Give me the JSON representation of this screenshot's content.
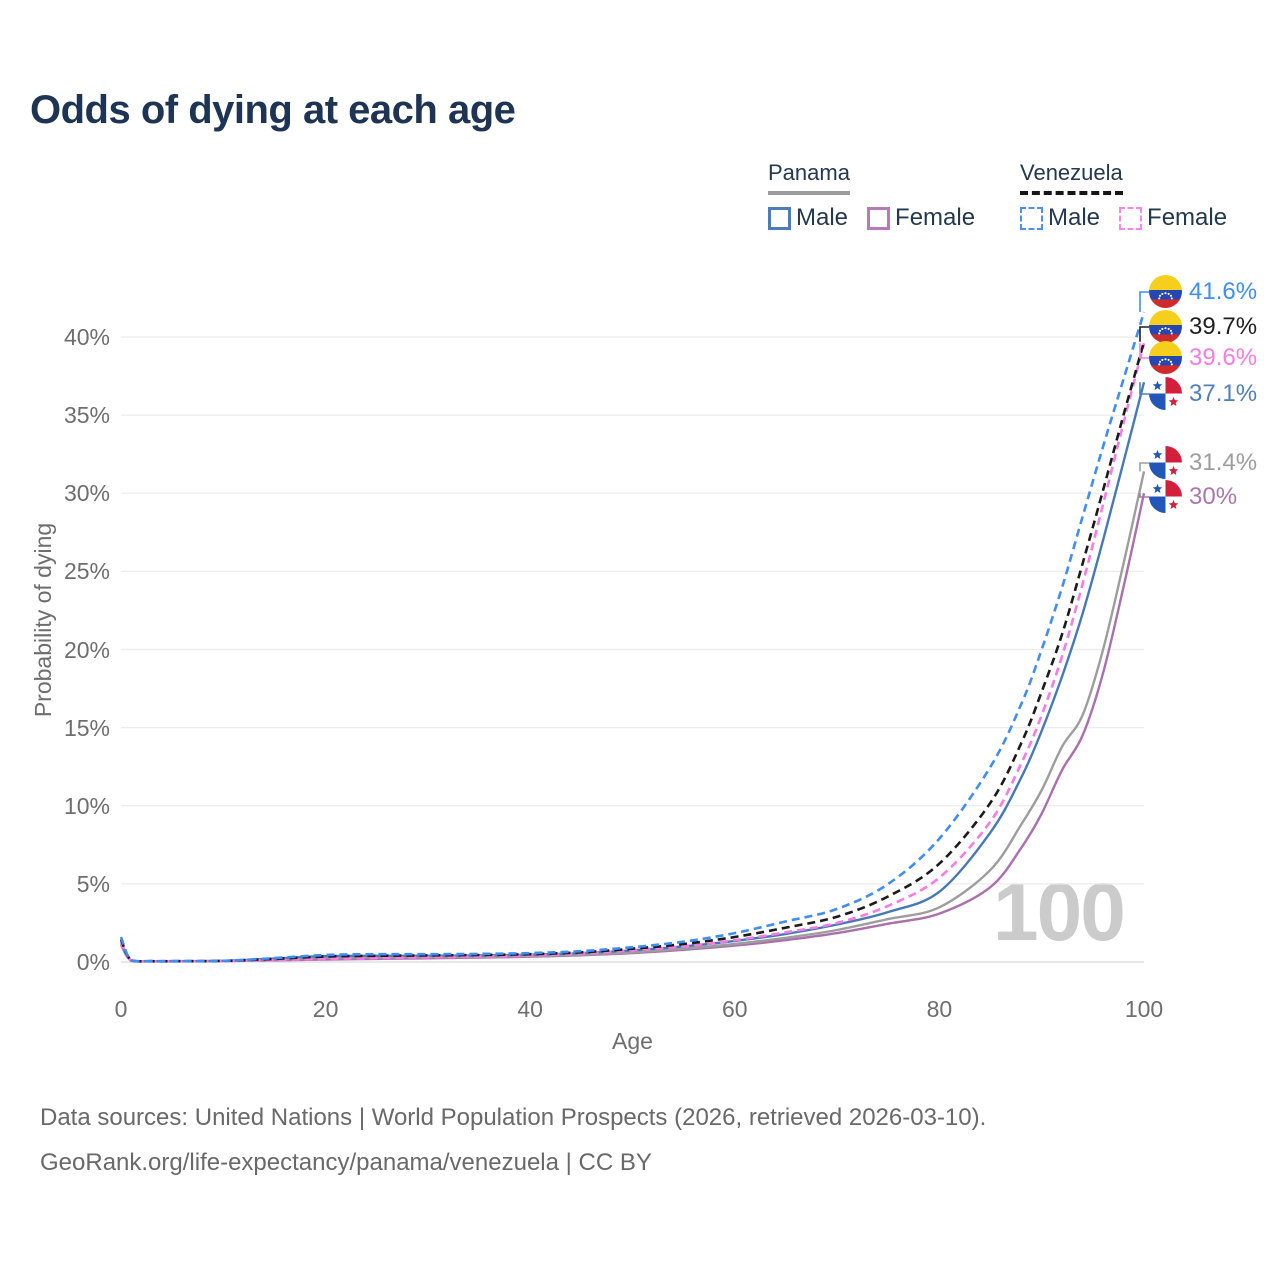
{
  "title": "Odds of dying at each age",
  "legend": {
    "panama": {
      "name": "Panama",
      "male_label": "Male",
      "female_label": "Female",
      "male_color": "#4d7cba",
      "female_color": "#b77ab8",
      "line_style": "solid",
      "underline_color": "#9c9c9c"
    },
    "venezuela": {
      "name": "Venezuela",
      "male_label": "Male",
      "female_label": "Female",
      "male_color": "#4a90f5",
      "female_color": "#fc85ec",
      "line_style": "dashed",
      "underline_color": "#161616"
    }
  },
  "watermark": "100",
  "end_labels": [
    {
      "value": "41.6%",
      "series": "Venezuela Male",
      "flag": "venezuela",
      "color": "#3f8df5"
    },
    {
      "value": "39.7%",
      "series": "Venezuela Both sexes",
      "flag": "venezuela",
      "color": "#1f1f1f"
    },
    {
      "value": "39.6%",
      "series": "Venezuela Female",
      "flag": "venezuela",
      "color": "#fb7ae4"
    },
    {
      "value": "37.1%",
      "series": "Panama Male",
      "flag": "panama",
      "color": "#4f7fbd"
    },
    {
      "value": "31.4%",
      "series": "Panama Both sexes",
      "flag": "panama",
      "color": "#9d9d9d"
    },
    {
      "value": "30%",
      "series": "Panama Female",
      "flag": "panama",
      "color": "#a877ad"
    }
  ],
  "footer": {
    "line1": "Data sources: United Nations | World Population Prospects (2026, retrieved 2026-03-10).",
    "line2": "GeoRank.org/life-expectancy/panama/venezuela | CC BY"
  },
  "chart_data": {
    "type": "line",
    "title": "Odds of dying at each age",
    "xlabel": "Age",
    "ylabel": "Probability of dying",
    "xlim": [
      0,
      100
    ],
    "ylim": [
      0,
      42.5
    ],
    "grid": "horizontal",
    "legend_position": "top-right",
    "x_ticks": [
      0,
      20,
      40,
      60,
      80,
      100
    ],
    "x_tick_labels": [
      "0",
      "20",
      "40",
      "60",
      "80",
      "100"
    ],
    "y_ticks": [
      0,
      5,
      10,
      15,
      20,
      25,
      30,
      35,
      40
    ],
    "y_tick_labels": [
      "0%",
      "5%",
      "10%",
      "15%",
      "20%",
      "25%",
      "30%",
      "35%",
      "40%"
    ],
    "x": [
      0,
      1,
      3,
      5,
      10,
      15,
      20,
      25,
      30,
      35,
      40,
      45,
      50,
      55,
      60,
      65,
      70,
      75,
      80,
      85,
      88,
      90,
      92,
      94,
      96,
      98,
      100
    ],
    "series": [
      {
        "name": "Panama Female",
        "country": "Panama",
        "sex": "Female",
        "color": "#ab6fae",
        "dash": "solid",
        "end_label": "30%",
        "values": [
          1.1,
          0.08,
          0.04,
          0.04,
          0.06,
          0.11,
          0.16,
          0.2,
          0.24,
          0.28,
          0.34,
          0.43,
          0.57,
          0.78,
          1.05,
          1.4,
          1.85,
          2.45,
          3.1,
          4.8,
          7.3,
          9.5,
          12.3,
          14.5,
          18.5,
          24.0,
          30.0
        ]
      },
      {
        "name": "Panama Both sexes",
        "country": "Panama",
        "sex": "Both",
        "color": "#9d9d9d",
        "dash": "solid",
        "end_label": "31.4%",
        "values": [
          1.2,
          0.09,
          0.05,
          0.05,
          0.07,
          0.17,
          0.28,
          0.3,
          0.31,
          0.33,
          0.38,
          0.47,
          0.62,
          0.85,
          1.15,
          1.55,
          2.05,
          2.75,
          3.5,
          5.9,
          8.8,
          11.0,
          13.8,
          15.8,
          20.0,
          25.5,
          31.4
        ]
      },
      {
        "name": "Panama Male",
        "country": "Panama",
        "sex": "Male",
        "color": "#4679b8",
        "dash": "solid",
        "end_label": "37.1%",
        "values": [
          1.3,
          0.1,
          0.05,
          0.05,
          0.08,
          0.22,
          0.38,
          0.4,
          0.4,
          0.42,
          0.47,
          0.57,
          0.75,
          1.0,
          1.35,
          1.8,
          2.4,
          3.2,
          4.5,
          8.3,
          11.8,
          14.8,
          18.3,
          22.3,
          27.0,
          32.0,
          37.1
        ]
      },
      {
        "name": "Venezuela Female",
        "country": "Venezuela",
        "sex": "Female",
        "color": "#fb7ae4",
        "dash": "dashed",
        "end_label": "39.6%",
        "values": [
          1.3,
          0.1,
          0.05,
          0.05,
          0.06,
          0.13,
          0.2,
          0.25,
          0.3,
          0.35,
          0.42,
          0.55,
          0.75,
          1.0,
          1.4,
          1.9,
          2.5,
          3.6,
          5.4,
          9.0,
          12.7,
          15.8,
          19.6,
          24.2,
          29.3,
          34.5,
          39.6
        ]
      },
      {
        "name": "Venezuela Both sexes",
        "country": "Venezuela",
        "sex": "Both",
        "color": "#1b1b1b",
        "dash": "dashed",
        "end_label": "39.7%",
        "values": [
          1.45,
          0.11,
          0.05,
          0.05,
          0.07,
          0.2,
          0.35,
          0.4,
          0.42,
          0.45,
          0.5,
          0.62,
          0.85,
          1.15,
          1.6,
          2.2,
          2.9,
          4.2,
          6.3,
          10.2,
          14.0,
          17.3,
          21.0,
          25.5,
          30.2,
          35.0,
          39.7
        ]
      },
      {
        "name": "Venezuela Male",
        "country": "Venezuela",
        "sex": "Male",
        "color": "#3f8df5",
        "dash": "dashed",
        "end_label": "41.6%",
        "values": [
          1.6,
          0.12,
          0.06,
          0.06,
          0.08,
          0.25,
          0.45,
          0.5,
          0.5,
          0.52,
          0.57,
          0.7,
          0.95,
          1.3,
          1.85,
          2.6,
          3.4,
          5.0,
          7.9,
          12.5,
          16.5,
          20.0,
          24.0,
          28.5,
          33.0,
          37.3,
          41.6
        ]
      }
    ]
  }
}
